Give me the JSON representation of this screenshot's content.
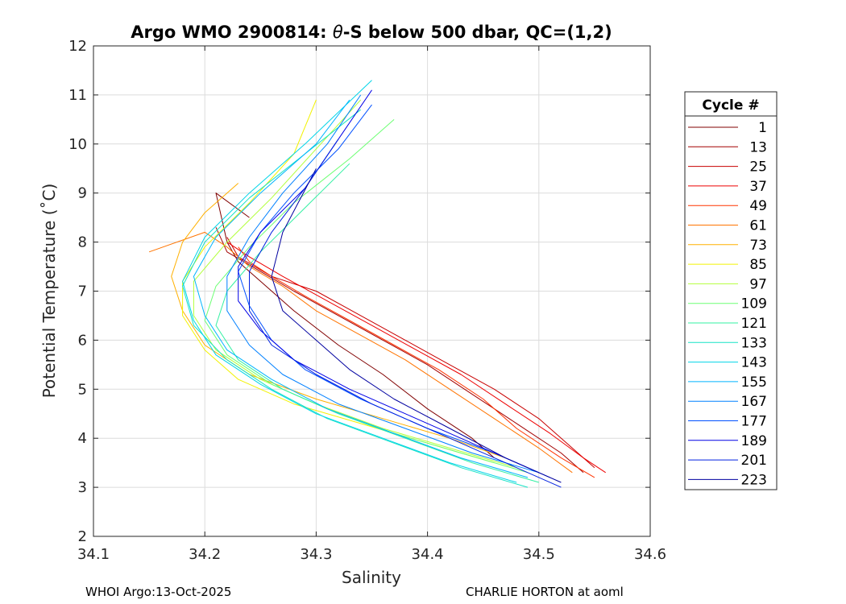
{
  "chart_data": {
    "type": "line",
    "title": "Argo WMO 2900814: θ-S below 500 dbar,  QC=(1,2)",
    "title_parts": {
      "prefix": "Argo WMO 2900814: ",
      "theta": "θ",
      "suffix": "-S below 500 dbar,  QC=(1,2)"
    },
    "xlabel": "Salinity",
    "ylabel": "Potential Temperature (˚C)",
    "xlim": [
      34.1,
      34.6
    ],
    "ylim": [
      2,
      12
    ],
    "xticks": [
      "34.1",
      "34.2",
      "34.3",
      "34.4",
      "34.5",
      "34.6"
    ],
    "yticks": [
      "2",
      "3",
      "4",
      "5",
      "6",
      "7",
      "8",
      "9",
      "10",
      "11",
      "12"
    ],
    "grid": true,
    "legend": {
      "title": "Cycle #",
      "position": "right-outside",
      "entries": [
        {
          "label": "1",
          "color": "#800000"
        },
        {
          "label": "13",
          "color": "#a30000"
        },
        {
          "label": "25",
          "color": "#c80000"
        },
        {
          "label": "37",
          "color": "#ee0000"
        },
        {
          "label": "49",
          "color": "#ff3300"
        },
        {
          "label": "61",
          "color": "#ff7400"
        },
        {
          "label": "73",
          "color": "#ffb000"
        },
        {
          "label": "85",
          "color": "#f2f200"
        },
        {
          "label": "97",
          "color": "#b2ff3c"
        },
        {
          "label": "109",
          "color": "#6cff73"
        },
        {
          "label": "121",
          "color": "#33f0a3"
        },
        {
          "label": "133",
          "color": "#16e3c6"
        },
        {
          "label": "143",
          "color": "#00d4e8"
        },
        {
          "label": "155",
          "color": "#00b4ff"
        },
        {
          "label": "167",
          "color": "#0080ff"
        },
        {
          "label": "177",
          "color": "#0050ff"
        },
        {
          "label": "189",
          "color": "#0000e6"
        },
        {
          "label": "201",
          "color": "#0020e0"
        },
        {
          "label": "223",
          "color": "#0000a0"
        }
      ]
    },
    "series": [
      {
        "name": "1",
        "color": "#800000",
        "x": [
          34.46,
          34.44,
          34.4,
          34.36,
          34.32,
          34.28,
          34.25,
          34.23,
          34.22,
          34.21,
          34.24
        ],
        "y": [
          3.6,
          4.0,
          4.6,
          5.3,
          5.9,
          6.6,
          7.2,
          7.6,
          8.0,
          9.0,
          8.5
        ]
      },
      {
        "name": "13",
        "color": "#a30000",
        "x": [
          34.54,
          34.52,
          34.48,
          34.44,
          34.4,
          34.36,
          34.32,
          34.28,
          34.25,
          34.22,
          34.21
        ],
        "y": [
          3.3,
          3.7,
          4.3,
          4.9,
          5.5,
          6.0,
          6.5,
          7.0,
          7.4,
          7.8,
          8.3
        ]
      },
      {
        "name": "25",
        "color": "#c80000",
        "x": [
          34.55,
          34.53,
          34.5,
          34.46,
          34.42,
          34.38,
          34.34,
          34.3,
          34.26,
          34.23,
          34.22
        ],
        "y": [
          3.4,
          3.8,
          4.4,
          5.0,
          5.5,
          6.0,
          6.5,
          7.0,
          7.3,
          7.7,
          8.1
        ]
      },
      {
        "name": "37",
        "color": "#ee0000",
        "x": [
          34.56,
          34.54,
          34.51,
          34.47,
          34.43,
          34.39,
          34.35,
          34.31,
          34.27,
          34.24,
          34.22
        ],
        "y": [
          3.3,
          3.6,
          4.1,
          4.7,
          5.3,
          5.8,
          6.3,
          6.8,
          7.3,
          7.7,
          8.0
        ]
      },
      {
        "name": "49",
        "color": "#ff3300",
        "x": [
          34.55,
          34.52,
          34.48,
          34.45,
          34.41,
          34.37,
          34.33,
          34.29,
          34.26,
          34.24,
          34.23
        ],
        "y": [
          3.2,
          3.6,
          4.2,
          4.8,
          5.4,
          5.9,
          6.4,
          6.9,
          7.3,
          7.6,
          7.9
        ]
      },
      {
        "name": "61",
        "color": "#ff7400",
        "x": [
          34.53,
          34.5,
          34.46,
          34.42,
          34.38,
          34.34,
          34.3,
          34.27,
          34.24,
          34.22,
          34.2,
          34.15
        ],
        "y": [
          3.3,
          3.8,
          4.4,
          5.0,
          5.6,
          6.1,
          6.6,
          7.1,
          7.5,
          7.9,
          8.2,
          7.8
        ]
      },
      {
        "name": "73",
        "color": "#ffb000",
        "x": [
          34.47,
          34.42,
          34.36,
          34.3,
          34.24,
          34.2,
          34.18,
          34.17,
          34.18,
          34.2,
          34.23
        ],
        "y": [
          3.6,
          4.0,
          4.4,
          4.8,
          5.3,
          5.9,
          6.6,
          7.3,
          8.0,
          8.6,
          9.2
        ]
      },
      {
        "name": "85",
        "color": "#f2f200",
        "x": [
          34.46,
          34.4,
          34.34,
          34.28,
          34.23,
          34.2,
          34.18,
          34.18,
          34.2,
          34.24,
          34.28,
          34.3
        ],
        "y": [
          3.5,
          3.9,
          4.3,
          4.7,
          5.2,
          5.8,
          6.5,
          7.2,
          7.9,
          8.8,
          9.8,
          10.9
        ]
      },
      {
        "name": "97",
        "color": "#b2ff3c",
        "x": [
          34.48,
          34.42,
          34.36,
          34.3,
          34.25,
          34.21,
          34.19,
          34.19,
          34.22,
          34.26,
          34.3,
          34.34
        ],
        "y": [
          3.4,
          3.8,
          4.2,
          4.7,
          5.2,
          5.8,
          6.5,
          7.2,
          8.0,
          8.9,
          9.9,
          10.9
        ]
      },
      {
        "name": "109",
        "color": "#6cff73",
        "x": [
          34.49,
          34.43,
          34.37,
          34.31,
          34.26,
          34.22,
          34.2,
          34.21,
          34.24,
          34.28,
          34.33,
          34.37
        ],
        "y": [
          3.3,
          3.7,
          4.1,
          4.6,
          5.1,
          5.7,
          6.4,
          7.1,
          7.9,
          8.8,
          9.7,
          10.5
        ]
      },
      {
        "name": "121",
        "color": "#33f0a3",
        "x": [
          34.5,
          34.44,
          34.38,
          34.32,
          34.27,
          34.23,
          34.21,
          34.22,
          34.25,
          34.29,
          34.33
        ],
        "y": [
          3.1,
          3.5,
          4.0,
          4.5,
          5.0,
          5.6,
          6.3,
          7.0,
          7.8,
          8.7,
          9.6
        ]
      },
      {
        "name": "133",
        "color": "#16e3c6",
        "x": [
          34.49,
          34.43,
          34.37,
          34.31,
          34.26,
          34.22,
          34.19,
          34.18,
          34.2,
          34.24,
          34.29,
          34.34
        ],
        "y": [
          3.0,
          3.4,
          3.9,
          4.4,
          5.0,
          5.6,
          6.3,
          7.1,
          8.0,
          8.9,
          9.8,
          10.7
        ]
      },
      {
        "name": "143",
        "color": "#00d4e8",
        "x": [
          34.48,
          34.42,
          34.36,
          34.3,
          34.25,
          34.21,
          34.19,
          34.18,
          34.2,
          34.24,
          34.29,
          34.35
        ],
        "y": [
          3.1,
          3.5,
          4.0,
          4.5,
          5.1,
          5.7,
          6.4,
          7.2,
          8.1,
          9.0,
          10.0,
          11.3
        ]
      },
      {
        "name": "155",
        "color": "#00b4ff",
        "x": [
          34.49,
          34.43,
          34.37,
          34.31,
          34.26,
          34.22,
          34.2,
          34.19,
          34.21,
          34.25,
          34.3,
          34.33
        ],
        "y": [
          3.2,
          3.6,
          4.1,
          4.6,
          5.2,
          5.8,
          6.5,
          7.3,
          8.1,
          9.0,
          10.0,
          10.9
        ]
      },
      {
        "name": "167",
        "color": "#0080ff",
        "x": [
          34.5,
          34.44,
          34.38,
          34.32,
          34.27,
          34.24,
          34.22,
          34.22,
          34.24,
          34.27,
          34.31,
          34.34
        ],
        "y": [
          3.3,
          3.7,
          4.2,
          4.7,
          5.3,
          5.9,
          6.6,
          7.3,
          8.1,
          9.0,
          10.0,
          11.0
        ]
      },
      {
        "name": "177",
        "color": "#0050ff",
        "x": [
          34.51,
          34.46,
          34.4,
          34.34,
          34.29,
          34.26,
          34.24,
          34.23,
          34.25,
          34.28,
          34.32,
          34.35
        ],
        "y": [
          3.2,
          3.7,
          4.2,
          4.8,
          5.4,
          6.0,
          6.7,
          7.4,
          8.2,
          9.0,
          9.9,
          10.8
        ]
      },
      {
        "name": "189",
        "color": "#0000e6",
        "x": [
          34.5,
          34.45,
          34.39,
          34.33,
          34.28,
          34.25,
          34.23,
          34.23,
          34.25,
          34.29,
          34.35
        ],
        "y": [
          3.3,
          3.8,
          4.4,
          5.0,
          5.6,
          6.2,
          6.8,
          7.5,
          8.2,
          9.1,
          11.1
        ]
      },
      {
        "name": "201",
        "color": "#0020e0",
        "x": [
          34.52,
          34.47,
          34.41,
          34.35,
          34.3,
          34.26,
          34.24,
          34.24,
          34.26,
          34.29,
          34.32
        ],
        "y": [
          3.0,
          3.5,
          4.1,
          4.7,
          5.3,
          5.9,
          6.6,
          7.4,
          8.2,
          9.1,
          10.1
        ]
      },
      {
        "name": "223",
        "color": "#0000a0",
        "x": [
          34.52,
          34.47,
          34.42,
          34.37,
          34.33,
          34.3,
          34.27,
          34.26,
          34.27,
          34.3
        ],
        "y": [
          3.1,
          3.6,
          4.2,
          4.8,
          5.4,
          6.0,
          6.6,
          7.3,
          8.2,
          9.5
        ]
      }
    ]
  },
  "footer": {
    "left": "WHOI Argo:13-Oct-2025",
    "right": "CHARLIE HORTON at aoml"
  }
}
